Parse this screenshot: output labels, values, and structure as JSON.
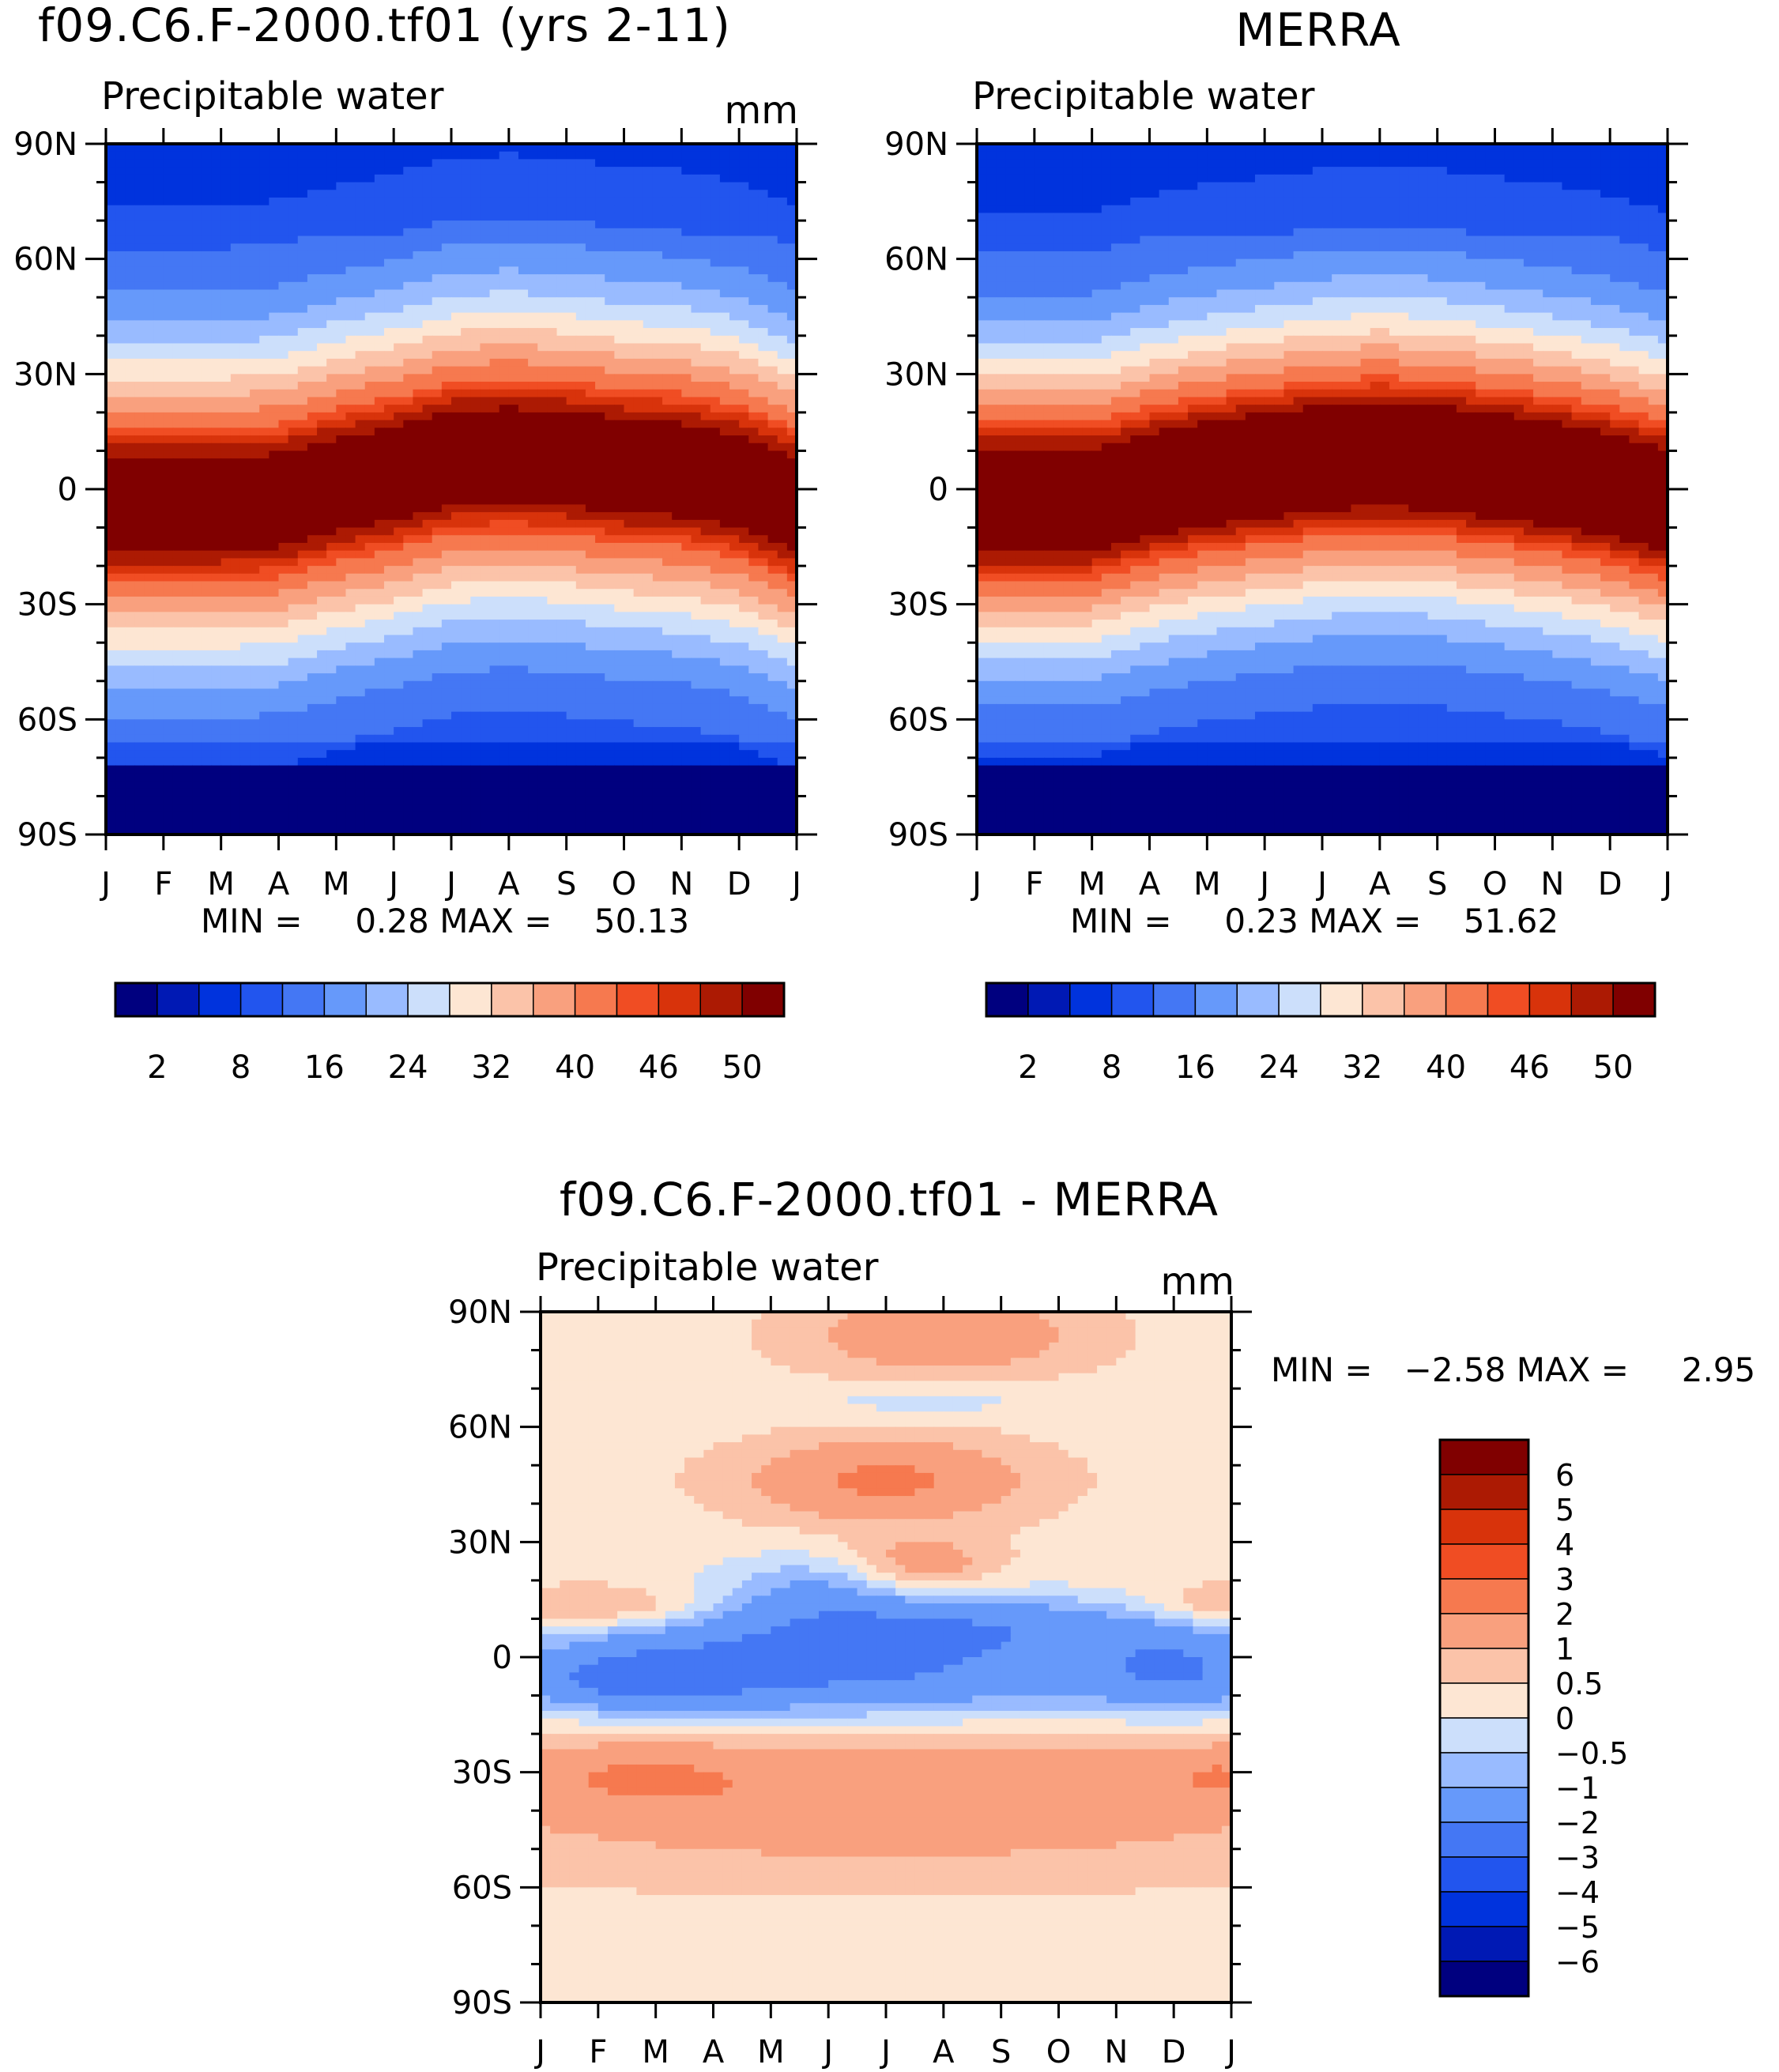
{
  "colors": {
    "pw_scale": [
      "#00007f",
      "#0019b4",
      "#0033dd",
      "#2255ee",
      "#4477f4",
      "#6699fa",
      "#99bbff",
      "#ccdffb",
      "#fde6d3",
      "#fbc3a9",
      "#f9a07e",
      "#f6794f",
      "#f04d23",
      "#d8330b",
      "#ac1a03",
      "#800000"
    ],
    "diff_scale": [
      "#00007f",
      "#0019b4",
      "#0033dd",
      "#2255ee",
      "#4477f4",
      "#6699fa",
      "#99bbff",
      "#ccdffb",
      "#fde6d3",
      "#fbc3a9",
      "#f9a07e",
      "#f6794f",
      "#f04d23",
      "#d8330b",
      "#ac1a03",
      "#800000"
    ]
  },
  "chart_data": [
    {
      "type": "heatmap",
      "title": "f09.C6.F-2000.tf01 (yrs 2-11)",
      "subtitle": "Precipitable water",
      "units": "mm",
      "x_tick_labels": [
        "J",
        "F",
        "M",
        "A",
        "M",
        "J",
        "J",
        "A",
        "S",
        "O",
        "N",
        "D",
        "J"
      ],
      "y_tick_labels": [
        "90N",
        "60N",
        "30N",
        "0",
        "30S",
        "60S",
        "90S"
      ],
      "ylim": [
        -90,
        90
      ],
      "x": "month (Jan to Jan)",
      "y": "latitude",
      "stats_label": "MIN =     0.28 MAX =    50.13",
      "min": 0.28,
      "max": 50.13,
      "colorbar_labels": [
        "2",
        "8",
        "16",
        "24",
        "32",
        "40",
        "46",
        "50"
      ],
      "colorbar_levels": [
        2,
        4,
        8,
        12,
        16,
        20,
        24,
        28,
        32,
        36,
        40,
        44,
        46,
        48,
        50
      ],
      "field": {
        "itcz_lat_by_month": [
          -4,
          -4,
          -4,
          -3,
          1,
          4,
          8,
          9,
          8,
          6,
          5,
          2,
          -4
        ],
        "peak_value_mm": 50.1,
        "tropical_halfwidth_deg": 26,
        "subtropical_halfwidth_deg": 55
      }
    },
    {
      "type": "heatmap",
      "title": "MERRA",
      "subtitle": "Precipitable water",
      "units": "",
      "x_tick_labels": [
        "J",
        "F",
        "M",
        "A",
        "M",
        "J",
        "J",
        "A",
        "S",
        "O",
        "N",
        "D",
        "J"
      ],
      "y_tick_labels": [
        "90N",
        "60N",
        "30N",
        "0",
        "30S",
        "60S",
        "90S"
      ],
      "ylim": [
        -90,
        90
      ],
      "x": "month (Jan to Jan)",
      "y": "latitude",
      "stats_label": "MIN =     0.23 MAX =    51.62",
      "min": 0.23,
      "max": 51.62,
      "colorbar_labels": [
        "2",
        "8",
        "16",
        "24",
        "32",
        "40",
        "46",
        "50"
      ],
      "colorbar_levels": [
        2,
        4,
        8,
        12,
        16,
        20,
        24,
        28,
        32,
        36,
        40,
        44,
        46,
        48,
        50
      ],
      "field": {
        "itcz_lat_by_month": [
          -3,
          -3,
          -3,
          1,
          4,
          6,
          8,
          9,
          8,
          6,
          4,
          1,
          -3
        ],
        "peak_value_mm": 51.6,
        "tropical_halfwidth_deg": 25,
        "subtropical_halfwidth_deg": 53
      }
    },
    {
      "type": "heatmap",
      "title": "f09.C6.F-2000.tf01 - MERRA",
      "subtitle": "Precipitable water",
      "units": "mm",
      "x_tick_labels": [
        "J",
        "F",
        "M",
        "A",
        "M",
        "J",
        "J",
        "A",
        "S",
        "O",
        "N",
        "D",
        "J"
      ],
      "y_tick_labels": [
        "90N",
        "60N",
        "30N",
        "0",
        "30S",
        "60S",
        "90S"
      ],
      "ylim": [
        -90,
        90
      ],
      "x": "month (Jan to Jan)",
      "y": "latitude",
      "stats_label": "MIN =   −2.58 MAX =     2.95",
      "min": -2.58,
      "max": 2.95,
      "colorbar_labels": [
        "6",
        "5",
        "4",
        "3",
        "2",
        "1",
        "0.5",
        "0",
        "−0.5",
        "−1",
        "−2",
        "−3",
        "−4",
        "−5",
        "−6"
      ],
      "colorbar_levels": [
        -6,
        -5,
        -4,
        -3,
        -2,
        -1,
        -0.5,
        0,
        0.5,
        1,
        2,
        3,
        4,
        5,
        6
      ],
      "field": {
        "features": [
          {
            "month": 5.5,
            "lat": -2,
            "amp": -2.6,
            "w_month": 3.6,
            "w_lat": 11
          },
          {
            "month": 1.5,
            "lat": -6,
            "amp": -1.8,
            "w_month": 1.6,
            "w_lat": 6
          },
          {
            "month": 11.2,
            "lat": -4,
            "amp": -1.8,
            "w_month": 1.2,
            "w_lat": 8
          },
          {
            "month": 7.5,
            "lat": 9,
            "amp": -1.0,
            "w_month": 3.5,
            "w_lat": 5
          },
          {
            "month": 4.8,
            "lat": 19,
            "amp": -1.0,
            "w_month": 1.2,
            "w_lat": 6
          },
          {
            "month": 6.7,
            "lat": 67,
            "amp": -0.6,
            "w_month": 1.6,
            "w_lat": 3
          },
          {
            "month": 6.0,
            "lat": 46,
            "amp": 1.9,
            "w_month": 1.6,
            "w_lat": 7
          },
          {
            "month": 6.6,
            "lat": 24,
            "amp": 1.3,
            "w_month": 0.9,
            "w_lat": 5
          },
          {
            "month": 1.2,
            "lat": 13,
            "amp": 1.2,
            "w_month": 1.3,
            "w_lat": 4
          },
          {
            "month": 11.8,
            "lat": 13,
            "amp": 1.1,
            "w_month": 1.0,
            "w_lat": 4
          },
          {
            "month": 7.0,
            "lat": 84,
            "amp": 1.4,
            "w_month": 1.6,
            "w_lat": 7
          },
          {
            "month": 6.0,
            "lat": -35,
            "amp": 1.5,
            "w_month": 5.5,
            "w_lat": 13
          },
          {
            "month": 1.6,
            "lat": -31,
            "amp": 0.9,
            "w_month": 1.4,
            "w_lat": 5
          },
          {
            "month": 11.9,
            "lat": -31,
            "amp": 1.0,
            "w_month": 0.9,
            "w_lat": 5
          }
        ],
        "background_mm": 0.35
      }
    }
  ]
}
